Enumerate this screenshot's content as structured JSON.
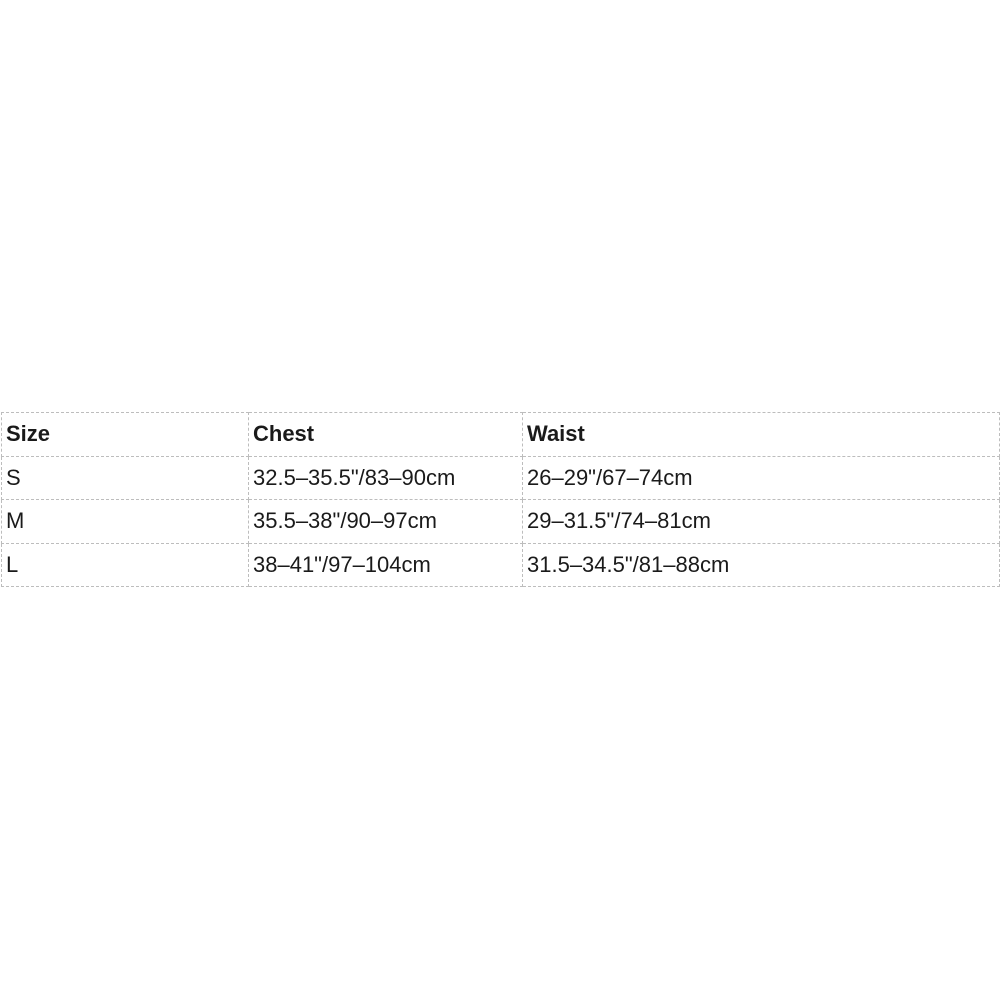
{
  "table": {
    "headers": [
      "Size",
      "Chest",
      "Waist"
    ],
    "rows": [
      [
        "S",
        "32.5–35.5\"/83–90cm",
        "26–29\"/67–74cm"
      ],
      [
        "M",
        "35.5–38\"/90–97cm",
        "29–31.5\"/74–81cm"
      ],
      [
        "L",
        "38–41\"/97–104cm",
        "31.5–34.5\"/81–88cm"
      ]
    ]
  }
}
